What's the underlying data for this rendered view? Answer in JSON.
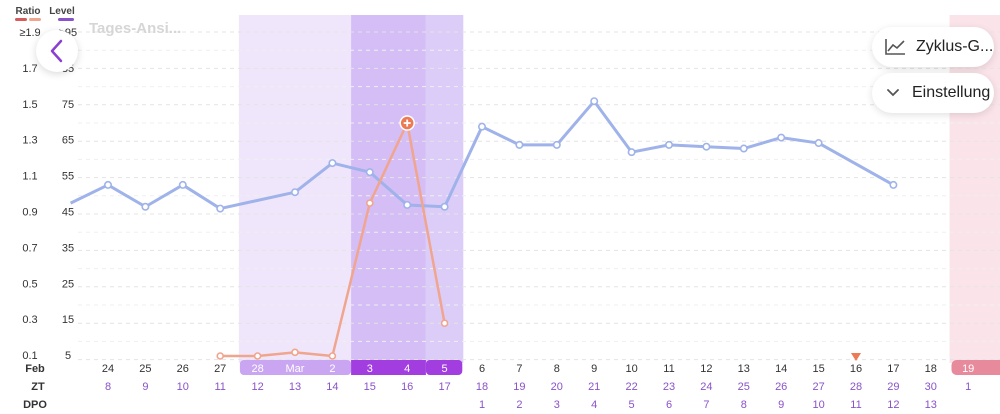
{
  "header": {
    "ratio_label": "Ratio",
    "level_label": "Level",
    "ghost_title": "Tages-Ansi...",
    "back_icon": "chevron-left-icon"
  },
  "menu": {
    "cycle_label": "Zyklus-G...",
    "cycle_icon": "line-chart-icon",
    "settings_label": "Einstellung",
    "settings_icon": "chevron-down-icon"
  },
  "row_labels": {
    "month": "Feb",
    "zt": "ZT",
    "dpo": "DPO"
  },
  "colors": {
    "level_line": "#9fb3ea",
    "ratio_line": "#f0a58e",
    "ratio_peak": "#ec7a55",
    "fertile_light": "#efe6fb",
    "fertile_mid": "#dccdf8",
    "fertile_dark": "#d5bdf6",
    "period_band": "#fbe4e9",
    "period_pill": "#e78a9c",
    "fertile_pill_light": "#c9a5f2",
    "fertile_pill_dark": "#a23de0",
    "zt_text": "#8a52c9",
    "marker": "#ec7a55"
  },
  "chart_data": {
    "type": "line",
    "left_axis": {
      "title": "Ratio",
      "ticks": [
        "≥1.9",
        "1.7",
        "1.5",
        "1.3",
        "1.1",
        "0.9",
        "0.7",
        "0.5",
        "0.3",
        "0.1"
      ]
    },
    "right_axis": {
      "title": "Level",
      "ticks": [
        "≥95",
        "85",
        "75",
        "65",
        "55",
        "45",
        "35",
        "25",
        "15",
        "5"
      ]
    },
    "x_dates": [
      "24",
      "25",
      "26",
      "27",
      "28",
      "Mar",
      "2",
      "3",
      "4",
      "5",
      "6",
      "7",
      "8",
      "9",
      "10",
      "11",
      "12",
      "13",
      "14",
      "15",
      "16",
      "17",
      "18",
      "19"
    ],
    "zt": [
      "8",
      "9",
      "10",
      "11",
      "12",
      "13",
      "14",
      "15",
      "16",
      "17",
      "18",
      "19",
      "20",
      "21",
      "22",
      "23",
      "24",
      "25",
      "26",
      "27",
      "28",
      "29",
      "30",
      "1"
    ],
    "dpo": [
      "",
      "",
      "",
      "",
      "",
      "",
      "",
      "",
      "",
      "",
      "1",
      "2",
      "3",
      "4",
      "5",
      "6",
      "7",
      "8",
      "9",
      "10",
      "11",
      "12",
      "13",
      ""
    ],
    "series": [
      {
        "name": "Level",
        "points": [
          [
            -1,
            47
          ],
          [
            0,
            52
          ],
          [
            1,
            46
          ],
          [
            2,
            52
          ],
          [
            3,
            45.5
          ],
          [
            5,
            50
          ],
          [
            6,
            58
          ],
          [
            7,
            55.5
          ],
          [
            8,
            46.5
          ],
          [
            9,
            46
          ],
          [
            10,
            68
          ],
          [
            11,
            63
          ],
          [
            12,
            63
          ],
          [
            13,
            75
          ],
          [
            14,
            61
          ],
          [
            15,
            63
          ],
          [
            16,
            62.5
          ],
          [
            17,
            62
          ],
          [
            18,
            65
          ],
          [
            19,
            63.5
          ],
          [
            21,
            52
          ]
        ]
      },
      {
        "name": "Ratio",
        "points": [
          [
            3,
            0.1
          ],
          [
            4,
            0.1
          ],
          [
            5,
            0.12
          ],
          [
            6,
            0.1
          ],
          [
            7,
            0.94
          ],
          [
            8,
            1.38
          ],
          [
            9,
            0.28
          ]
        ]
      }
    ],
    "fertile_window": {
      "from": "28",
      "to": "5",
      "peak_from": "3",
      "peak_to": "4"
    },
    "period_start": "19",
    "marker_day": "16"
  }
}
